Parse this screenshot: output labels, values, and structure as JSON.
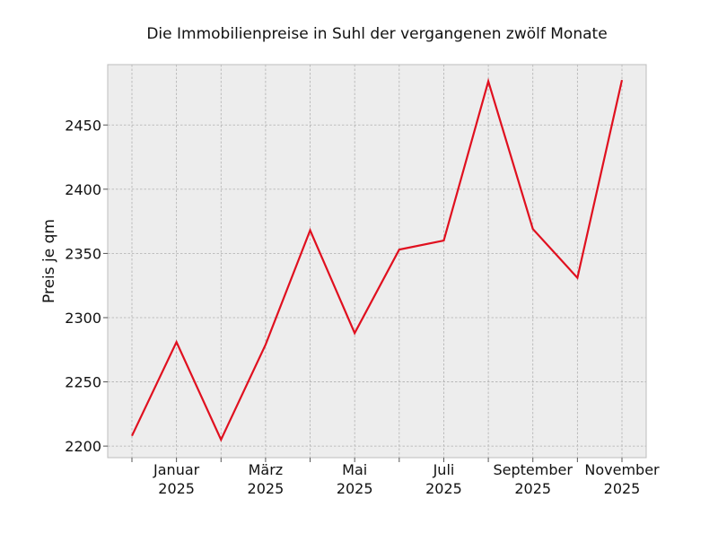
{
  "chart_data": {
    "type": "line",
    "title": "Die Immobilienpreise in Suhl der vergangenen zwölf Monate",
    "xlabel": "",
    "ylabel": "Preis je qm",
    "x": [
      "2024-12",
      "2025-01",
      "2025-02",
      "2025-03",
      "2025-04",
      "2025-05",
      "2025-06",
      "2025-07",
      "2025-08",
      "2025-09",
      "2025-10",
      "2025-11"
    ],
    "series": [
      {
        "values": [
          2208,
          2281,
          2205,
          2279,
          2368,
          2288,
          2353,
          2360,
          2484,
          2369,
          2331,
          2485
        ]
      }
    ],
    "ylim": [
      2191,
      2497
    ],
    "yticks": [
      2200,
      2250,
      2300,
      2350,
      2400,
      2450
    ],
    "xtick_labels": [
      {
        "x": "2025-01",
        "line1": "Januar",
        "line2": "2025"
      },
      {
        "x": "2025-03",
        "line1": "März",
        "line2": "2025"
      },
      {
        "x": "2025-05",
        "line1": "Mai",
        "line2": "2025"
      },
      {
        "x": "2025-07",
        "line1": "Juli",
        "line2": "2025"
      },
      {
        "x": "2025-09",
        "line1": "September",
        "line2": "2025"
      },
      {
        "x": "2025-11",
        "line1": "November",
        "line2": "2025"
      }
    ],
    "grid": true,
    "legend": "none",
    "colors": {
      "line": "#e0101f",
      "plot_background": "#ededed",
      "grid": "#b0b0b0",
      "frame": "#bdbdbd"
    }
  }
}
